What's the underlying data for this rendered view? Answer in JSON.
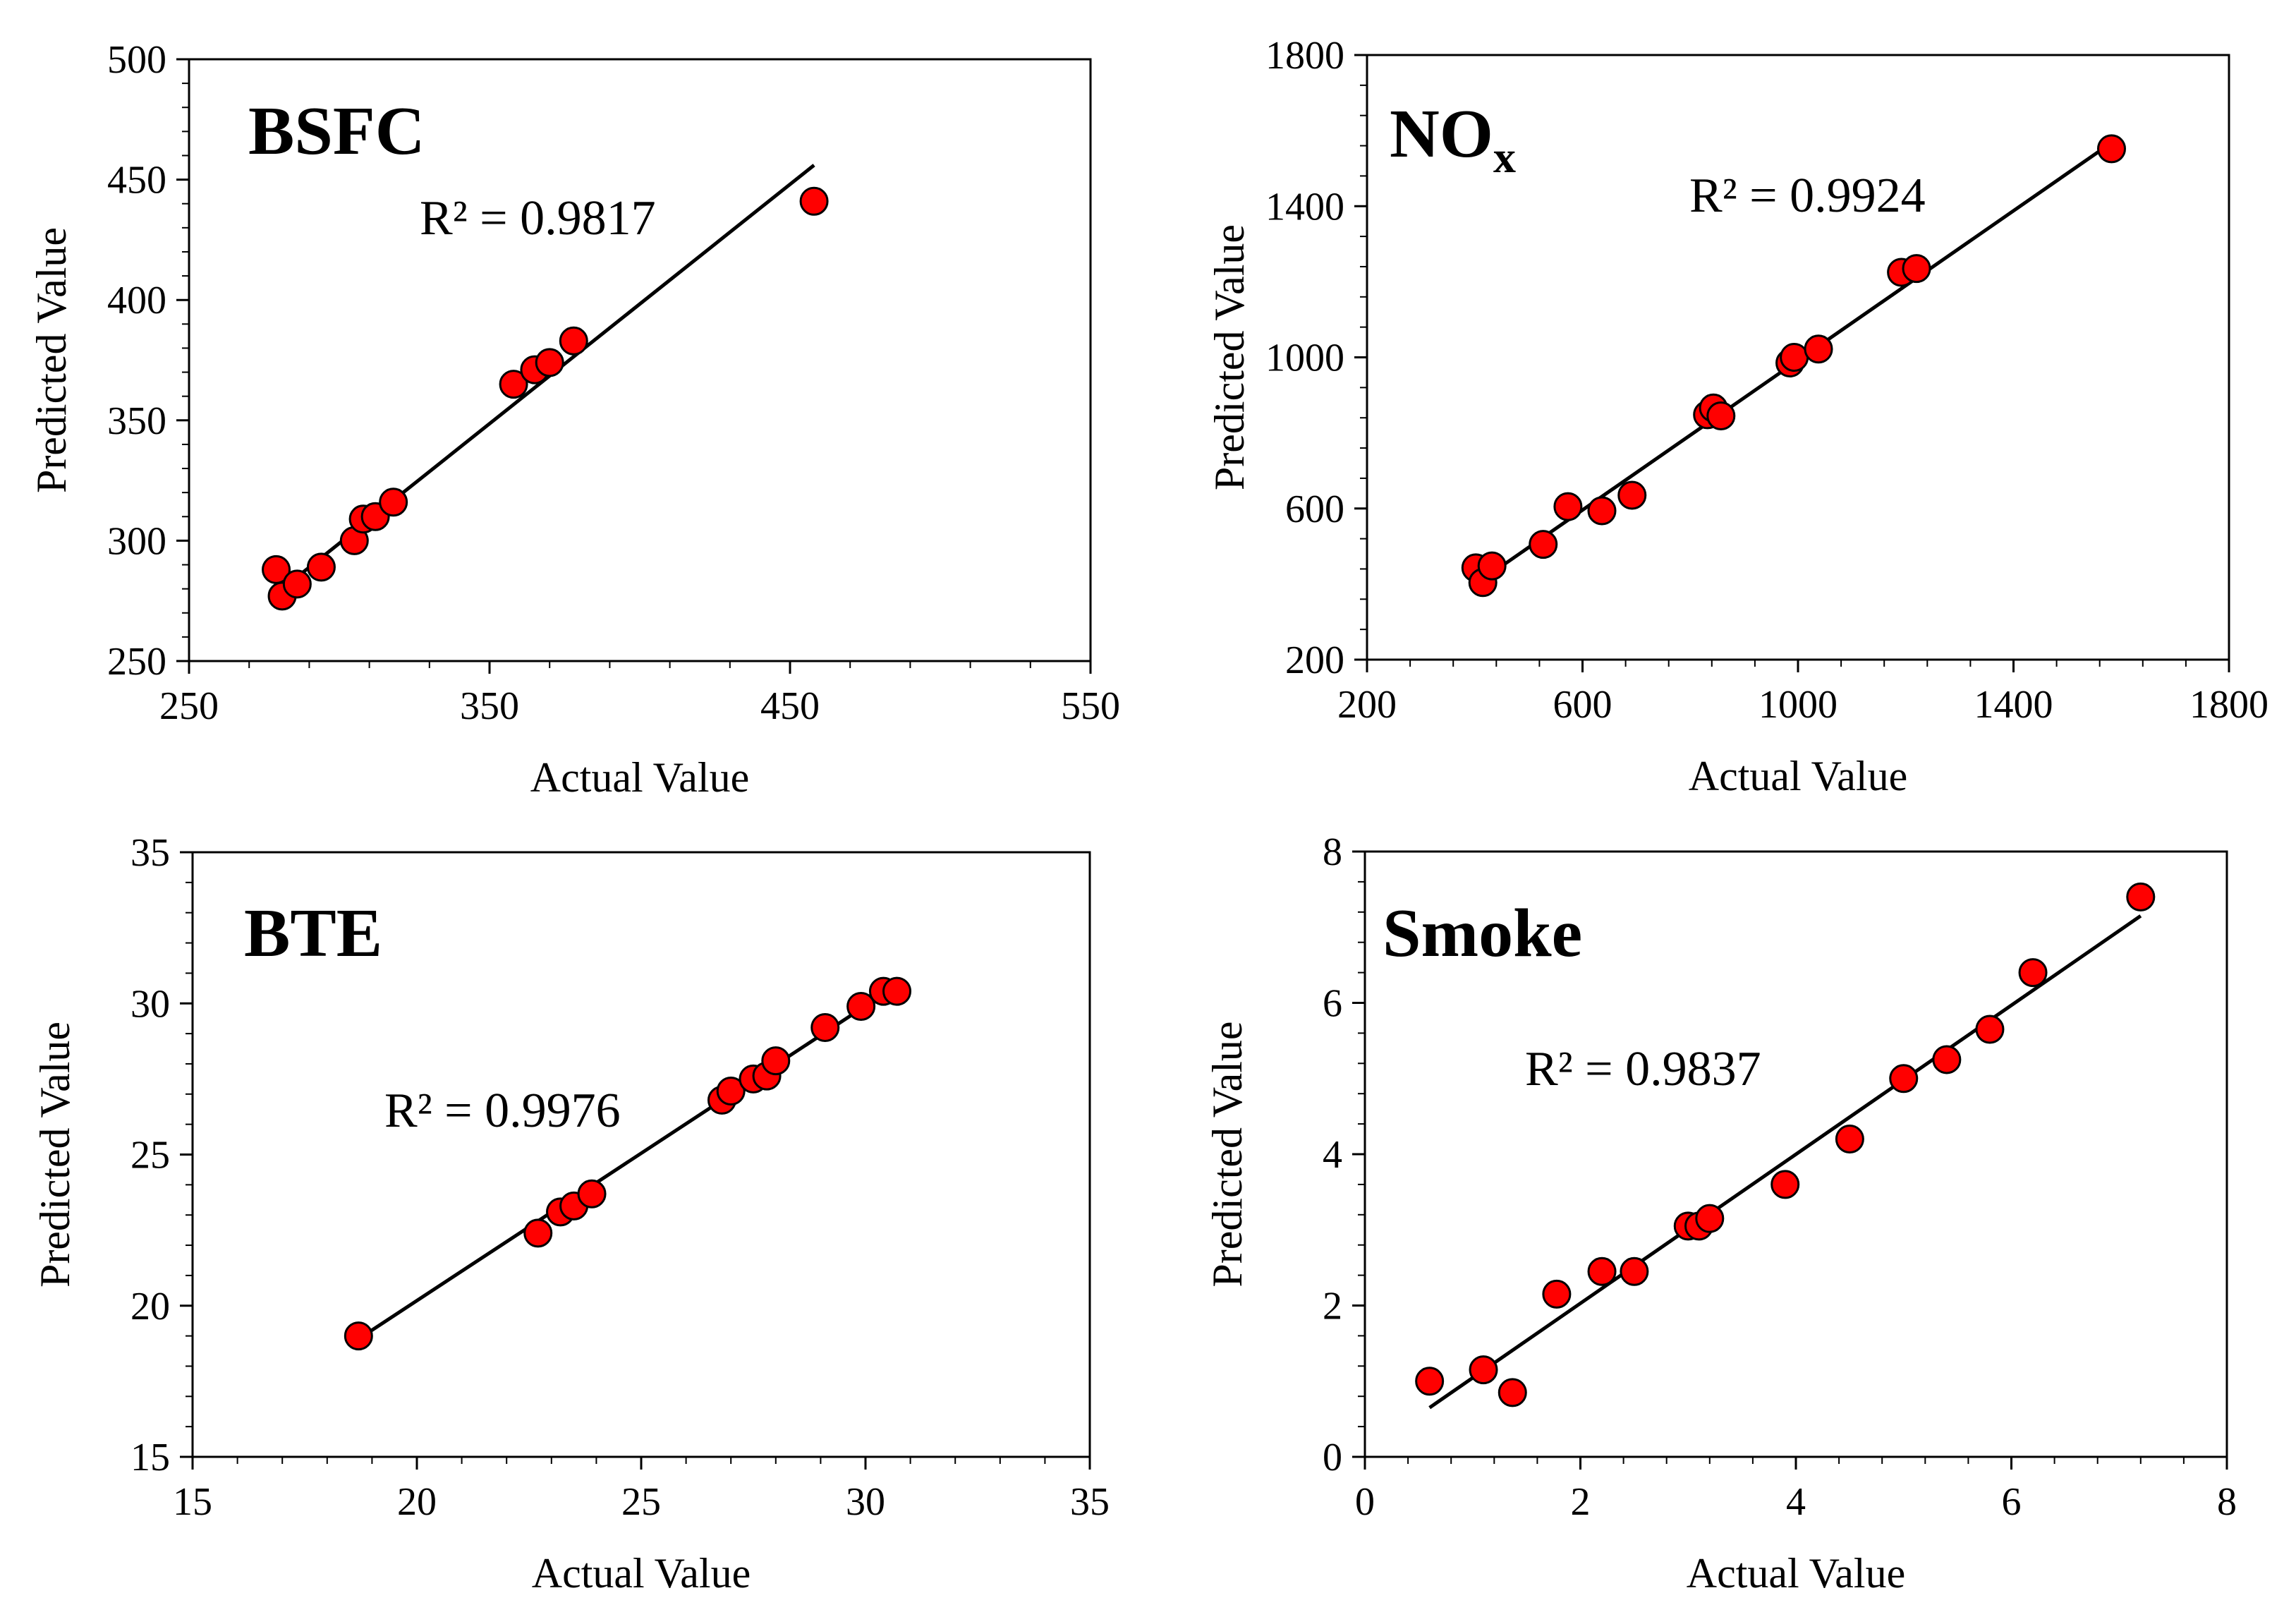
{
  "chart_data": [
    {
      "type": "scatter",
      "panel": "top-left",
      "title": "BSFC",
      "title_subscript": "",
      "annotation": "R² = 0.9817",
      "xlabel": "Actual Value",
      "ylabel": "Predicted Value",
      "xlim": [
        250,
        550
      ],
      "ylim": [
        250,
        500
      ],
      "xticks": [
        250,
        350,
        450,
        550
      ],
      "yticks": [
        250,
        300,
        350,
        400,
        450,
        500
      ],
      "fit_line": {
        "x": [
          279,
          458
        ],
        "y": [
          278,
          456
        ]
      },
      "points": [
        {
          "x": 279,
          "y": 288
        },
        {
          "x": 281,
          "y": 277
        },
        {
          "x": 286,
          "y": 282
        },
        {
          "x": 294,
          "y": 289
        },
        {
          "x": 305,
          "y": 300
        },
        {
          "x": 308,
          "y": 309
        },
        {
          "x": 312,
          "y": 310
        },
        {
          "x": 318,
          "y": 316
        },
        {
          "x": 358,
          "y": 365
        },
        {
          "x": 365,
          "y": 371
        },
        {
          "x": 370,
          "y": 374
        },
        {
          "x": 378,
          "y": 383
        },
        {
          "x": 458,
          "y": 441
        }
      ]
    },
    {
      "type": "scatter",
      "panel": "top-right",
      "title": "NO",
      "title_subscript": "x",
      "annotation": "R² = 0.9924",
      "xlabel": "Actual Value",
      "ylabel": "Predicted Value",
      "xlim": [
        200,
        1800
      ],
      "ylim": [
        200,
        1800
      ],
      "xticks": [
        200,
        600,
        1000,
        1400,
        1800
      ],
      "yticks": [
        200,
        600,
        1000,
        1400,
        1800
      ],
      "fit_line": {
        "x": [
          402,
          1582
        ],
        "y": [
          400,
          1568
        ]
      },
      "points": [
        {
          "x": 402,
          "y": 443
        },
        {
          "x": 415,
          "y": 404
        },
        {
          "x": 432,
          "y": 448
        },
        {
          "x": 527,
          "y": 505
        },
        {
          "x": 573,
          "y": 605
        },
        {
          "x": 636,
          "y": 594
        },
        {
          "x": 692,
          "y": 635
        },
        {
          "x": 832,
          "y": 848
        },
        {
          "x": 843,
          "y": 866
        },
        {
          "x": 857,
          "y": 845
        },
        {
          "x": 985,
          "y": 985
        },
        {
          "x": 993,
          "y": 1000
        },
        {
          "x": 1038,
          "y": 1022
        },
        {
          "x": 1192,
          "y": 1225
        },
        {
          "x": 1220,
          "y": 1235
        },
        {
          "x": 1582,
          "y": 1552
        }
      ]
    },
    {
      "type": "scatter",
      "panel": "bottom-left",
      "title": "BTE",
      "title_subscript": "",
      "annotation": "R² = 0.9976",
      "xlabel": "Actual Value",
      "ylabel": "Predicted Value",
      "xlim": [
        15,
        35
      ],
      "ylim": [
        15,
        35
      ],
      "xticks": [
        15,
        20,
        25,
        30,
        35
      ],
      "yticks": [
        15,
        20,
        25,
        30,
        35
      ],
      "fit_line": {
        "x": [
          18.7,
          30.7
        ],
        "y": [
          18.9,
          30.6
        ]
      },
      "points": [
        {
          "x": 18.7,
          "y": 19.0
        },
        {
          "x": 22.7,
          "y": 22.4
        },
        {
          "x": 23.2,
          "y": 23.1
        },
        {
          "x": 23.5,
          "y": 23.3
        },
        {
          "x": 23.9,
          "y": 23.7
        },
        {
          "x": 26.8,
          "y": 26.8
        },
        {
          "x": 27.0,
          "y": 27.1
        },
        {
          "x": 27.5,
          "y": 27.5
        },
        {
          "x": 27.8,
          "y": 27.6
        },
        {
          "x": 28.0,
          "y": 28.1
        },
        {
          "x": 29.1,
          "y": 29.2
        },
        {
          "x": 29.9,
          "y": 29.9
        },
        {
          "x": 30.4,
          "y": 30.4
        },
        {
          "x": 30.7,
          "y": 30.4
        }
      ]
    },
    {
      "type": "scatter",
      "panel": "bottom-right",
      "title": "Smoke",
      "title_subscript": "",
      "annotation": "R² = 0.9837",
      "xlabel": "Actual Value",
      "ylabel": "Predicted Value",
      "xlim": [
        0,
        8
      ],
      "ylim": [
        0,
        8
      ],
      "xticks": [
        0,
        2,
        4,
        6,
        8
      ],
      "yticks": [
        0,
        2,
        4,
        6,
        8
      ],
      "fit_line": {
        "x": [
          0.6,
          7.2
        ],
        "y": [
          0.65,
          7.15
        ]
      },
      "points": [
        {
          "x": 0.6,
          "y": 1.0
        },
        {
          "x": 1.1,
          "y": 1.15
        },
        {
          "x": 1.37,
          "y": 0.85
        },
        {
          "x": 1.78,
          "y": 2.15
        },
        {
          "x": 2.2,
          "y": 2.45
        },
        {
          "x": 2.5,
          "y": 2.45
        },
        {
          "x": 3.0,
          "y": 3.05
        },
        {
          "x": 3.1,
          "y": 3.05
        },
        {
          "x": 3.2,
          "y": 3.15
        },
        {
          "x": 3.9,
          "y": 3.6
        },
        {
          "x": 4.5,
          "y": 4.2
        },
        {
          "x": 5.0,
          "y": 5.0
        },
        {
          "x": 5.4,
          "y": 5.25
        },
        {
          "x": 5.8,
          "y": 5.65
        },
        {
          "x": 6.2,
          "y": 6.4
        },
        {
          "x": 7.2,
          "y": 7.4
        }
      ]
    }
  ],
  "style": {
    "marker_fill": "#ff0000",
    "marker_stroke": "#000000",
    "line_color": "#000000",
    "axis_color": "#000000"
  }
}
